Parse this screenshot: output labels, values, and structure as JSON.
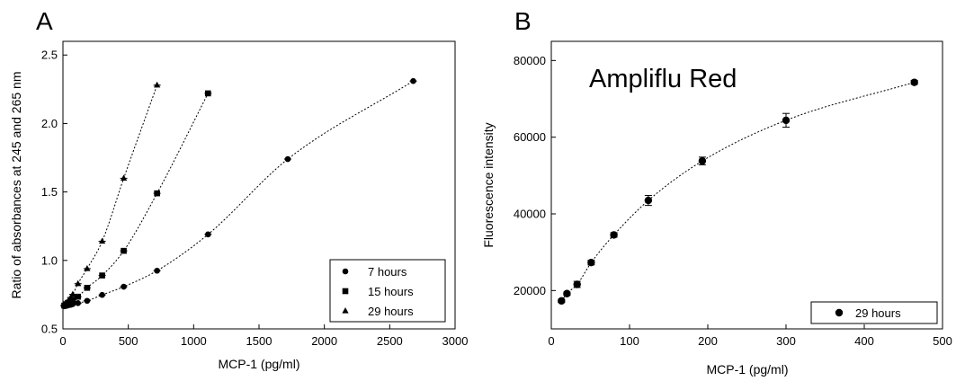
{
  "chart_data": [
    {
      "panel": "A",
      "type": "scatter",
      "xlabel": "MCP-1 (pg/ml)",
      "ylabel": "Ratio of absorbances at 245 and 265 nm",
      "xlim": [
        0,
        3000
      ],
      "ylim": [
        0.5,
        2.6
      ],
      "xticks": [
        0,
        500,
        1000,
        1500,
        2000,
        2500,
        3000
      ],
      "yticks": [
        0.5,
        1.0,
        1.5,
        2.0,
        2.5
      ],
      "xtick_labels": [
        "0",
        "500",
        "1000",
        "1500",
        "2000",
        "2500",
        "3000"
      ],
      "ytick_labels": [
        "0.5",
        "1.0",
        "1.5",
        "2.0",
        "2.5"
      ],
      "grid": false,
      "legend_position": "bottom-right",
      "fit_curves": "dotted",
      "series": [
        {
          "name": "7 hours",
          "marker": "circle",
          "x": [
            10,
            25,
            40,
            60,
            75,
            115,
            185,
            300,
            465,
            720,
            1110,
            1720,
            2680
          ],
          "y": [
            0.665,
            0.668,
            0.672,
            0.676,
            0.681,
            0.688,
            0.705,
            0.748,
            0.808,
            0.925,
            1.19,
            1.74,
            2.31
          ]
        },
        {
          "name": "15 hours",
          "marker": "square",
          "x": [
            10,
            25,
            40,
            60,
            75,
            115,
            185,
            300,
            465,
            720,
            1110
          ],
          "y": [
            0.67,
            0.68,
            0.69,
            0.7,
            0.712,
            0.735,
            0.8,
            0.89,
            1.07,
            1.49,
            2.22
          ]
        },
        {
          "name": "29 hours",
          "marker": "triangle",
          "x": [
            10,
            25,
            40,
            60,
            75,
            115,
            185,
            300,
            465,
            720
          ],
          "y": [
            0.675,
            0.69,
            0.705,
            0.73,
            0.752,
            0.83,
            0.94,
            1.14,
            1.6,
            2.28
          ]
        }
      ]
    },
    {
      "panel": "B",
      "type": "scatter",
      "annotation": "Ampliflu Red",
      "xlabel": "MCP-1 (pg/ml)",
      "ylabel": "Fluorescence intensity",
      "xlim": [
        0,
        500
      ],
      "ylim": [
        10000,
        85000
      ],
      "xticks": [
        0,
        100,
        200,
        300,
        400,
        500
      ],
      "yticks": [
        20000,
        40000,
        60000,
        80000
      ],
      "xtick_labels": [
        "0",
        "100",
        "200",
        "300",
        "400",
        "500"
      ],
      "ytick_labels": [
        "20000",
        "40000",
        "60000",
        "80000"
      ],
      "grid": false,
      "legend_position": "bottom-right",
      "fit_curves": "dotted",
      "series": [
        {
          "name": "29 hours",
          "marker": "circle",
          "x": [
            13,
            20,
            33,
            51,
            80,
            124,
            193,
            300,
            464
          ],
          "y": [
            17300,
            19200,
            21600,
            27300,
            34500,
            43500,
            53800,
            64400,
            74300
          ],
          "error": [
            400,
            400,
            800,
            600,
            600,
            1300,
            1000,
            1800,
            500
          ]
        }
      ]
    }
  ]
}
